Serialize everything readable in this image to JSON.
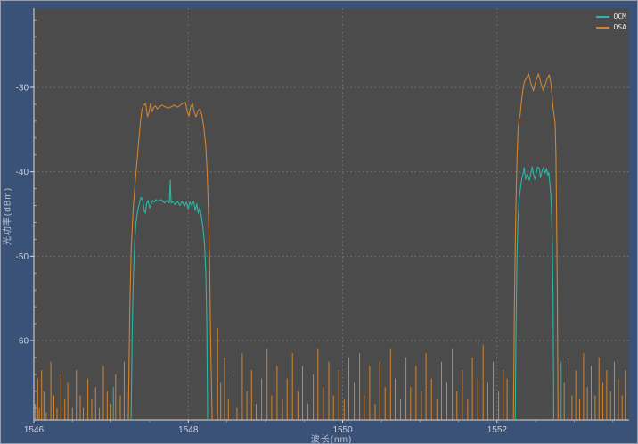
{
  "window": {
    "frame_color": "#3a5178"
  },
  "plot": {
    "bg": "#4b4b4b",
    "grid_color": "#a8a8a8",
    "axis_line_color": "#d9d9d9"
  },
  "axis": {
    "tick_color": "#ccd2dd",
    "label_color": "#bcc4d2"
  },
  "chart_data": {
    "type": "line",
    "title": "",
    "xlabel": "波长(nm)",
    "ylabel": "光功率(dBm)",
    "xlim": [
      1546,
      1553.71
    ],
    "ylim": [
      -69.4,
      -20.6
    ],
    "x_ticks": [
      1546,
      1548,
      1550,
      1552
    ],
    "y_ticks": [
      -30,
      -40,
      -50,
      -60
    ],
    "x_minor_step": 0.5,
    "y_minor_step": 2,
    "grid": "dashed",
    "legend_position": "top-right",
    "noise_floor": -69.4,
    "series": [
      {
        "name": "OCM",
        "color": "#2cb6a6",
        "bands": [
          [
            [
              1547.259,
              -69.4
            ],
            [
              1547.275,
              -58
            ],
            [
              1547.29,
              -52
            ],
            [
              1547.305,
              -48.5
            ],
            [
              1547.32,
              -46.3
            ],
            [
              1547.335,
              -45.2
            ],
            [
              1547.35,
              -44.4
            ],
            [
              1547.37,
              -43.6
            ],
            [
              1547.39,
              -43.0
            ],
            [
              1547.41,
              -43.4
            ],
            [
              1547.43,
              -44.6
            ],
            [
              1547.445,
              -44.9
            ],
            [
              1547.46,
              -43.8
            ],
            [
              1547.478,
              -43.4
            ],
            [
              1547.5,
              -44.3
            ],
            [
              1547.52,
              -43.8
            ],
            [
              1547.54,
              -43.4
            ],
            [
              1547.56,
              -43.6
            ],
            [
              1547.58,
              -43.3
            ],
            [
              1547.61,
              -43.5
            ],
            [
              1547.65,
              -43.3
            ],
            [
              1547.69,
              -43.7
            ],
            [
              1547.72,
              -43.4
            ],
            [
              1547.745,
              -43.7
            ],
            [
              1547.755,
              -43.6
            ],
            [
              1547.767,
              -41.0
            ],
            [
              1547.778,
              -43.7
            ],
            [
              1547.8,
              -43.5
            ],
            [
              1547.83,
              -43.9
            ],
            [
              1547.86,
              -43.5
            ],
            [
              1547.89,
              -44.0
            ],
            [
              1547.92,
              -43.5
            ],
            [
              1547.95,
              -44.1
            ],
            [
              1547.975,
              -43.6
            ],
            [
              1548.0,
              -44.4
            ],
            [
              1548.02,
              -43.6
            ],
            [
              1548.045,
              -44.0
            ],
            [
              1548.07,
              -43.5
            ],
            [
              1548.09,
              -44.6
            ],
            [
              1548.11,
              -43.8
            ],
            [
              1548.13,
              -44.9
            ],
            [
              1548.15,
              -44.2
            ],
            [
              1548.17,
              -45.3
            ],
            [
              1548.19,
              -46.5
            ],
            [
              1548.21,
              -48.5
            ],
            [
              1548.228,
              -52
            ],
            [
              1548.24,
              -58
            ],
            [
              1548.251,
              -69.4
            ]
          ],
          [
            [
              1552.235,
              -69.4
            ],
            [
              1552.247,
              -58
            ],
            [
              1552.258,
              -50
            ],
            [
              1552.27,
              -46
            ],
            [
              1552.282,
              -43.8
            ],
            [
              1552.294,
              -42.6
            ],
            [
              1552.305,
              -41.8
            ],
            [
              1552.32,
              -40.8
            ],
            [
              1552.34,
              -40.1
            ],
            [
              1552.351,
              -39.5
            ],
            [
              1552.37,
              -40.9
            ],
            [
              1552.39,
              -40.3
            ],
            [
              1552.42,
              -41.0
            ],
            [
              1552.44,
              -40.0
            ],
            [
              1552.455,
              -39.4
            ],
            [
              1552.47,
              -40.2
            ],
            [
              1552.49,
              -40.9
            ],
            [
              1552.51,
              -40.1
            ],
            [
              1552.525,
              -39.4
            ],
            [
              1552.548,
              -39.6
            ],
            [
              1552.56,
              -40.7
            ],
            [
              1552.58,
              -40.0
            ],
            [
              1552.6,
              -39.5
            ],
            [
              1552.62,
              -40.2
            ],
            [
              1552.64,
              -39.6
            ],
            [
              1552.655,
              -40.4
            ],
            [
              1552.67,
              -40.1
            ],
            [
              1552.682,
              -41.2
            ],
            [
              1552.694,
              -42.5
            ],
            [
              1552.705,
              -44.5
            ],
            [
              1552.715,
              -48
            ],
            [
              1552.725,
              -55
            ],
            [
              1552.735,
              -69.4
            ]
          ]
        ],
        "noise_spikes": [
          [
            1547.03,
            -65.5
          ],
          [
            1552.83,
            -62.5
          ]
        ]
      },
      {
        "name": "OSA",
        "color": "#d08433",
        "bands": [
          [
            [
              1547.224,
              -69.4
            ],
            [
              1547.243,
              -56
            ],
            [
              1547.262,
              -49
            ],
            [
              1547.286,
              -44.5
            ],
            [
              1547.31,
              -41.5
            ],
            [
              1547.335,
              -38.8
            ],
            [
              1547.36,
              -36.2
            ],
            [
              1547.382,
              -34.0
            ],
            [
              1547.4,
              -32.6
            ],
            [
              1547.422,
              -32.1
            ],
            [
              1547.448,
              -31.9
            ],
            [
              1547.472,
              -33.5
            ],
            [
              1547.49,
              -33.0
            ],
            [
              1547.512,
              -31.9
            ],
            [
              1547.53,
              -32.9
            ],
            [
              1547.55,
              -32.4
            ],
            [
              1547.575,
              -32.2
            ],
            [
              1547.6,
              -32.55
            ],
            [
              1547.63,
              -32.3
            ],
            [
              1547.66,
              -32.1
            ],
            [
              1547.7,
              -32.3
            ],
            [
              1547.74,
              -32.45
            ],
            [
              1547.78,
              -32.3
            ],
            [
              1547.82,
              -32.1
            ],
            [
              1547.86,
              -32.35
            ],
            [
              1547.9,
              -32.1
            ],
            [
              1547.935,
              -31.85
            ],
            [
              1547.963,
              -31.8
            ],
            [
              1547.99,
              -33.0
            ],
            [
              1548.009,
              -33.4
            ],
            [
              1548.03,
              -32.3
            ],
            [
              1548.055,
              -31.9
            ],
            [
              1548.08,
              -33.0
            ],
            [
              1548.1,
              -33.5
            ],
            [
              1548.125,
              -32.8
            ],
            [
              1548.15,
              -32.55
            ],
            [
              1548.175,
              -33.2
            ],
            [
              1548.2,
              -34.6
            ],
            [
              1548.225,
              -36.8
            ],
            [
              1548.245,
              -40
            ],
            [
              1548.262,
              -45
            ],
            [
              1548.278,
              -52
            ],
            [
              1548.29,
              -60
            ],
            [
              1548.309,
              -69.4
            ]
          ],
          [
            [
              1552.212,
              -69.4
            ],
            [
              1552.225,
              -56
            ],
            [
              1552.238,
              -47
            ],
            [
              1552.25,
              -41.5
            ],
            [
              1552.262,
              -37.5
            ],
            [
              1552.272,
              -35.0
            ],
            [
              1552.284,
              -33.8
            ],
            [
              1552.298,
              -33.3
            ],
            [
              1552.315,
              -31.8
            ],
            [
              1552.335,
              -30.2
            ],
            [
              1552.355,
              -29.3
            ],
            [
              1552.38,
              -28.9
            ],
            [
              1552.409,
              -28.4
            ],
            [
              1552.44,
              -29.6
            ],
            [
              1552.47,
              -30.4
            ],
            [
              1552.5,
              -29.3
            ],
            [
              1552.536,
              -28.4
            ],
            [
              1552.57,
              -29.6
            ],
            [
              1552.6,
              -30.4
            ],
            [
              1552.64,
              -29.2
            ],
            [
              1552.675,
              -28.5
            ],
            [
              1552.697,
              -29.5
            ],
            [
              1552.712,
              -30.9
            ],
            [
              1552.726,
              -32.4
            ],
            [
              1552.74,
              -33.4
            ],
            [
              1552.752,
              -34.2
            ],
            [
              1552.762,
              -38
            ],
            [
              1552.772,
              -46
            ],
            [
              1552.781,
              -55
            ],
            [
              1552.79,
              -69.4
            ]
          ]
        ],
        "noise_spikes": [
          [
            1546.02,
            -67.5
          ],
          [
            1546.05,
            -64.5
          ],
          [
            1546.07,
            -68
          ],
          [
            1546.1,
            -63.5
          ],
          [
            1546.13,
            -66
          ],
          [
            1546.16,
            -68.5
          ],
          [
            1546.22,
            -62.5
          ],
          [
            1546.26,
            -66.5
          ],
          [
            1546.3,
            -68
          ],
          [
            1546.35,
            -64
          ],
          [
            1546.4,
            -67
          ],
          [
            1546.44,
            -65
          ],
          [
            1546.5,
            -68
          ],
          [
            1546.55,
            -63.5
          ],
          [
            1546.6,
            -66.5
          ],
          [
            1546.64,
            -68
          ],
          [
            1546.7,
            -64.5
          ],
          [
            1546.75,
            -67
          ],
          [
            1546.8,
            -65.5
          ],
          [
            1546.85,
            -68
          ],
          [
            1546.9,
            -63
          ],
          [
            1546.95,
            -66
          ],
          [
            1547.0,
            -67.5
          ],
          [
            1547.06,
            -64
          ],
          [
            1547.12,
            -66.5
          ],
          [
            1547.17,
            -62.5
          ],
          [
            1548.38,
            -58.5
          ],
          [
            1548.42,
            -65
          ],
          [
            1548.47,
            -62
          ],
          [
            1548.52,
            -67
          ],
          [
            1548.58,
            -64
          ],
          [
            1548.63,
            -68
          ],
          [
            1548.7,
            -61.5
          ],
          [
            1548.76,
            -66
          ],
          [
            1548.82,
            -63.5
          ],
          [
            1548.88,
            -67.5
          ],
          [
            1548.95,
            -64.5
          ],
          [
            1549.02,
            -61
          ],
          [
            1549.08,
            -66.5
          ],
          [
            1549.15,
            -63
          ],
          [
            1549.22,
            -67
          ],
          [
            1549.28,
            -64.5
          ],
          [
            1549.35,
            -61.5
          ],
          [
            1549.42,
            -66
          ],
          [
            1549.48,
            -63
          ],
          [
            1549.55,
            -67.5
          ],
          [
            1549.62,
            -64
          ],
          [
            1549.68,
            -61
          ],
          [
            1549.75,
            -65.5
          ],
          [
            1549.82,
            -62.5
          ],
          [
            1549.88,
            -66.5
          ],
          [
            1549.95,
            -63.5
          ],
          [
            1550.02,
            -67
          ],
          [
            1550.08,
            -62
          ],
          [
            1550.15,
            -65
          ],
          [
            1550.22,
            -61.5
          ],
          [
            1550.28,
            -66.5
          ],
          [
            1550.35,
            -63
          ],
          [
            1550.42,
            -67.5
          ],
          [
            1550.48,
            -62.5
          ],
          [
            1550.55,
            -65.5
          ],
          [
            1550.62,
            -61
          ],
          [
            1550.68,
            -64.5
          ],
          [
            1550.75,
            -67
          ],
          [
            1550.82,
            -62
          ],
          [
            1550.88,
            -65.5
          ],
          [
            1550.95,
            -63
          ],
          [
            1551.02,
            -66
          ],
          [
            1551.08,
            -61.5
          ],
          [
            1551.15,
            -64.5
          ],
          [
            1551.22,
            -67
          ],
          [
            1551.28,
            -62.5
          ],
          [
            1551.35,
            -65
          ],
          [
            1551.42,
            -61
          ],
          [
            1551.48,
            -66
          ],
          [
            1551.55,
            -63.5
          ],
          [
            1551.62,
            -67
          ],
          [
            1551.68,
            -62
          ],
          [
            1551.75,
            -64.5
          ],
          [
            1551.82,
            -60.5
          ],
          [
            1551.88,
            -65
          ],
          [
            1551.95,
            -62.5
          ],
          [
            1552.02,
            -66
          ],
          [
            1552.08,
            -63.5
          ],
          [
            1552.13,
            -64.5
          ],
          [
            1552.87,
            -65
          ],
          [
            1552.92,
            -62
          ],
          [
            1552.97,
            -66.5
          ],
          [
            1553.02,
            -63.5
          ],
          [
            1553.07,
            -67
          ],
          [
            1553.12,
            -61.5
          ],
          [
            1553.17,
            -65.5
          ],
          [
            1553.22,
            -63
          ],
          [
            1553.27,
            -66.5
          ],
          [
            1553.32,
            -62
          ],
          [
            1553.37,
            -65
          ],
          [
            1553.42,
            -63.5
          ],
          [
            1553.47,
            -66
          ],
          [
            1553.52,
            -62.5
          ],
          [
            1553.57,
            -64.5
          ],
          [
            1553.62,
            -66.5
          ],
          [
            1553.66,
            -63.5
          ]
        ]
      }
    ]
  }
}
